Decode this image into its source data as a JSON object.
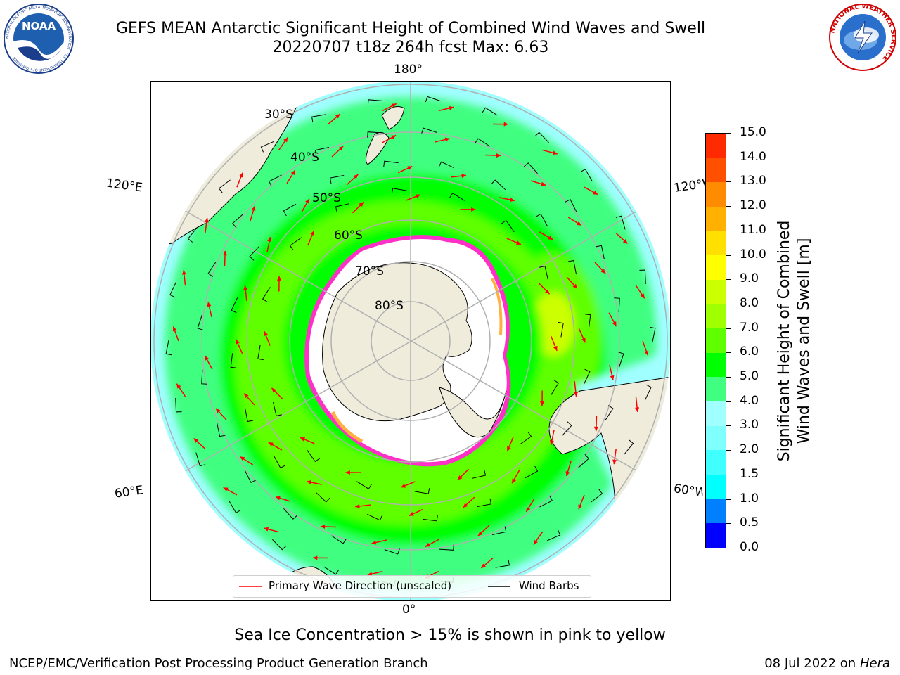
{
  "title_line1": "GEFS MEAN Antarctic Significant Height of Combined Wind Waves and Swell",
  "title_line2": "20220707 t18z 264h fcst   Max: 6.63",
  "logos": {
    "noaa": {
      "text": "NOAA",
      "ring_text": "NATIONAL OCEANIC AND ATMOSPHERIC ADMINISTRATION · U.S. DEPARTMENT OF COMMERCE"
    },
    "nws": {
      "ring_text": "NATIONAL WEATHER SERVICE"
    }
  },
  "map": {
    "projection": "south-polar-stereographic",
    "lon_labels": {
      "top": "180°",
      "bottom": "0°",
      "upper_left": "120°E",
      "upper_right": "120°W",
      "lower_left": "60°E",
      "lower_right": "60°W"
    },
    "lat_labels": [
      "30°S",
      "40°S",
      "50°S",
      "60°S",
      "70°S",
      "80°S"
    ],
    "colors": {
      "land": "#efecdc",
      "ice": "#ffffff",
      "ice_edge": "#ff40c0",
      "grid": "#b0b0b0",
      "wave_arrow": "#ff0000",
      "wind_barb": "#000000"
    }
  },
  "legend": {
    "primary_wave": "Primary Wave Direction (unscaled)",
    "wind_barbs": "Wind Barbs"
  },
  "colorbar": {
    "label_line1": "Significant Height of Combined",
    "label_line2": "Wind Waves and Swell [m]",
    "ticks": [
      "0.0",
      "0.5",
      "1.0",
      "1.5",
      "2.0",
      "3.0",
      "4.0",
      "5.0",
      "6.0",
      "7.0",
      "8.0",
      "9.0",
      "10.0",
      "11.0",
      "12.0",
      "13.0",
      "14.0",
      "15.0"
    ],
    "colors": [
      "#0000ff",
      "#0080ff",
      "#00ffff",
      "#40ffff",
      "#80ffff",
      "#a0ffff",
      "#40ff80",
      "#00ff00",
      "#60ff00",
      "#a0ff00",
      "#ccff00",
      "#ffff00",
      "#ffe000",
      "#ffb000",
      "#ff8c00",
      "#ff5000",
      "#ff2a00",
      "#ff0000"
    ]
  },
  "footnote": "Sea Ice Concentration > 15% is shown in pink to yellow",
  "credit": "NCEP/EMC/Verification Post Processing Product Generation Branch",
  "date_text": "08 Jul 2022 on ",
  "date_host": "Hera"
}
